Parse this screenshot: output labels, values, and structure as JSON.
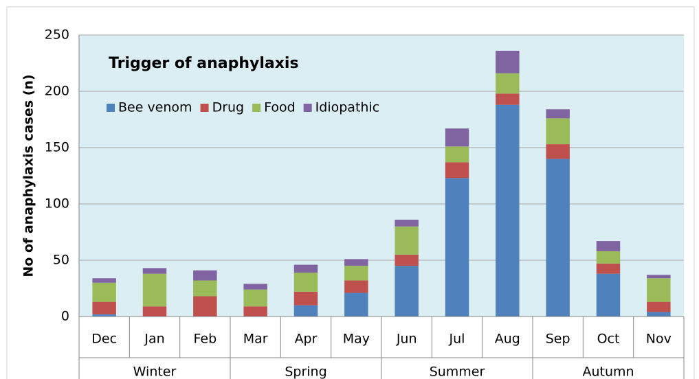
{
  "chart_data": {
    "type": "stacked_bar",
    "title": "Trigger of anaphylaxis",
    "y_label": "No of anaphylaxis cases (n)",
    "categories": [
      "Dec",
      "Jan",
      "Feb",
      "Mar",
      "Apr",
      "May",
      "Jun",
      "Jul",
      "Aug",
      "Sep",
      "Oct",
      "Nov"
    ],
    "category_groups": [
      "Winter",
      "Winter",
      "Winter",
      "Spring",
      "Spring",
      "Spring",
      "Summer",
      "Summer",
      "Summer",
      "Autumn",
      "Autumn",
      "Autumn"
    ],
    "series": [
      {
        "name": "Bee venom",
        "color": "#4f81bd",
        "values": [
          2,
          0,
          0,
          0,
          10,
          21,
          45,
          123,
          188,
          140,
          38,
          4
        ]
      },
      {
        "name": "Drug",
        "color": "#c0504d",
        "values": [
          11,
          9,
          18,
          9,
          12,
          11,
          10,
          14,
          10,
          13,
          9,
          9
        ]
      },
      {
        "name": "Food",
        "color": "#9bbb59",
        "values": [
          17,
          29,
          14,
          15,
          17,
          13,
          25,
          14,
          18,
          23,
          11,
          21
        ]
      },
      {
        "name": "Idiopathic",
        "color": "#8064a2",
        "values": [
          4,
          5,
          9,
          5,
          7,
          6,
          6,
          16,
          20,
          8,
          9,
          3
        ]
      }
    ],
    "ylim": [
      0,
      250
    ],
    "yticks": [
      0,
      50,
      100,
      150,
      200,
      250
    ],
    "grid": true,
    "legend": "top-left"
  }
}
